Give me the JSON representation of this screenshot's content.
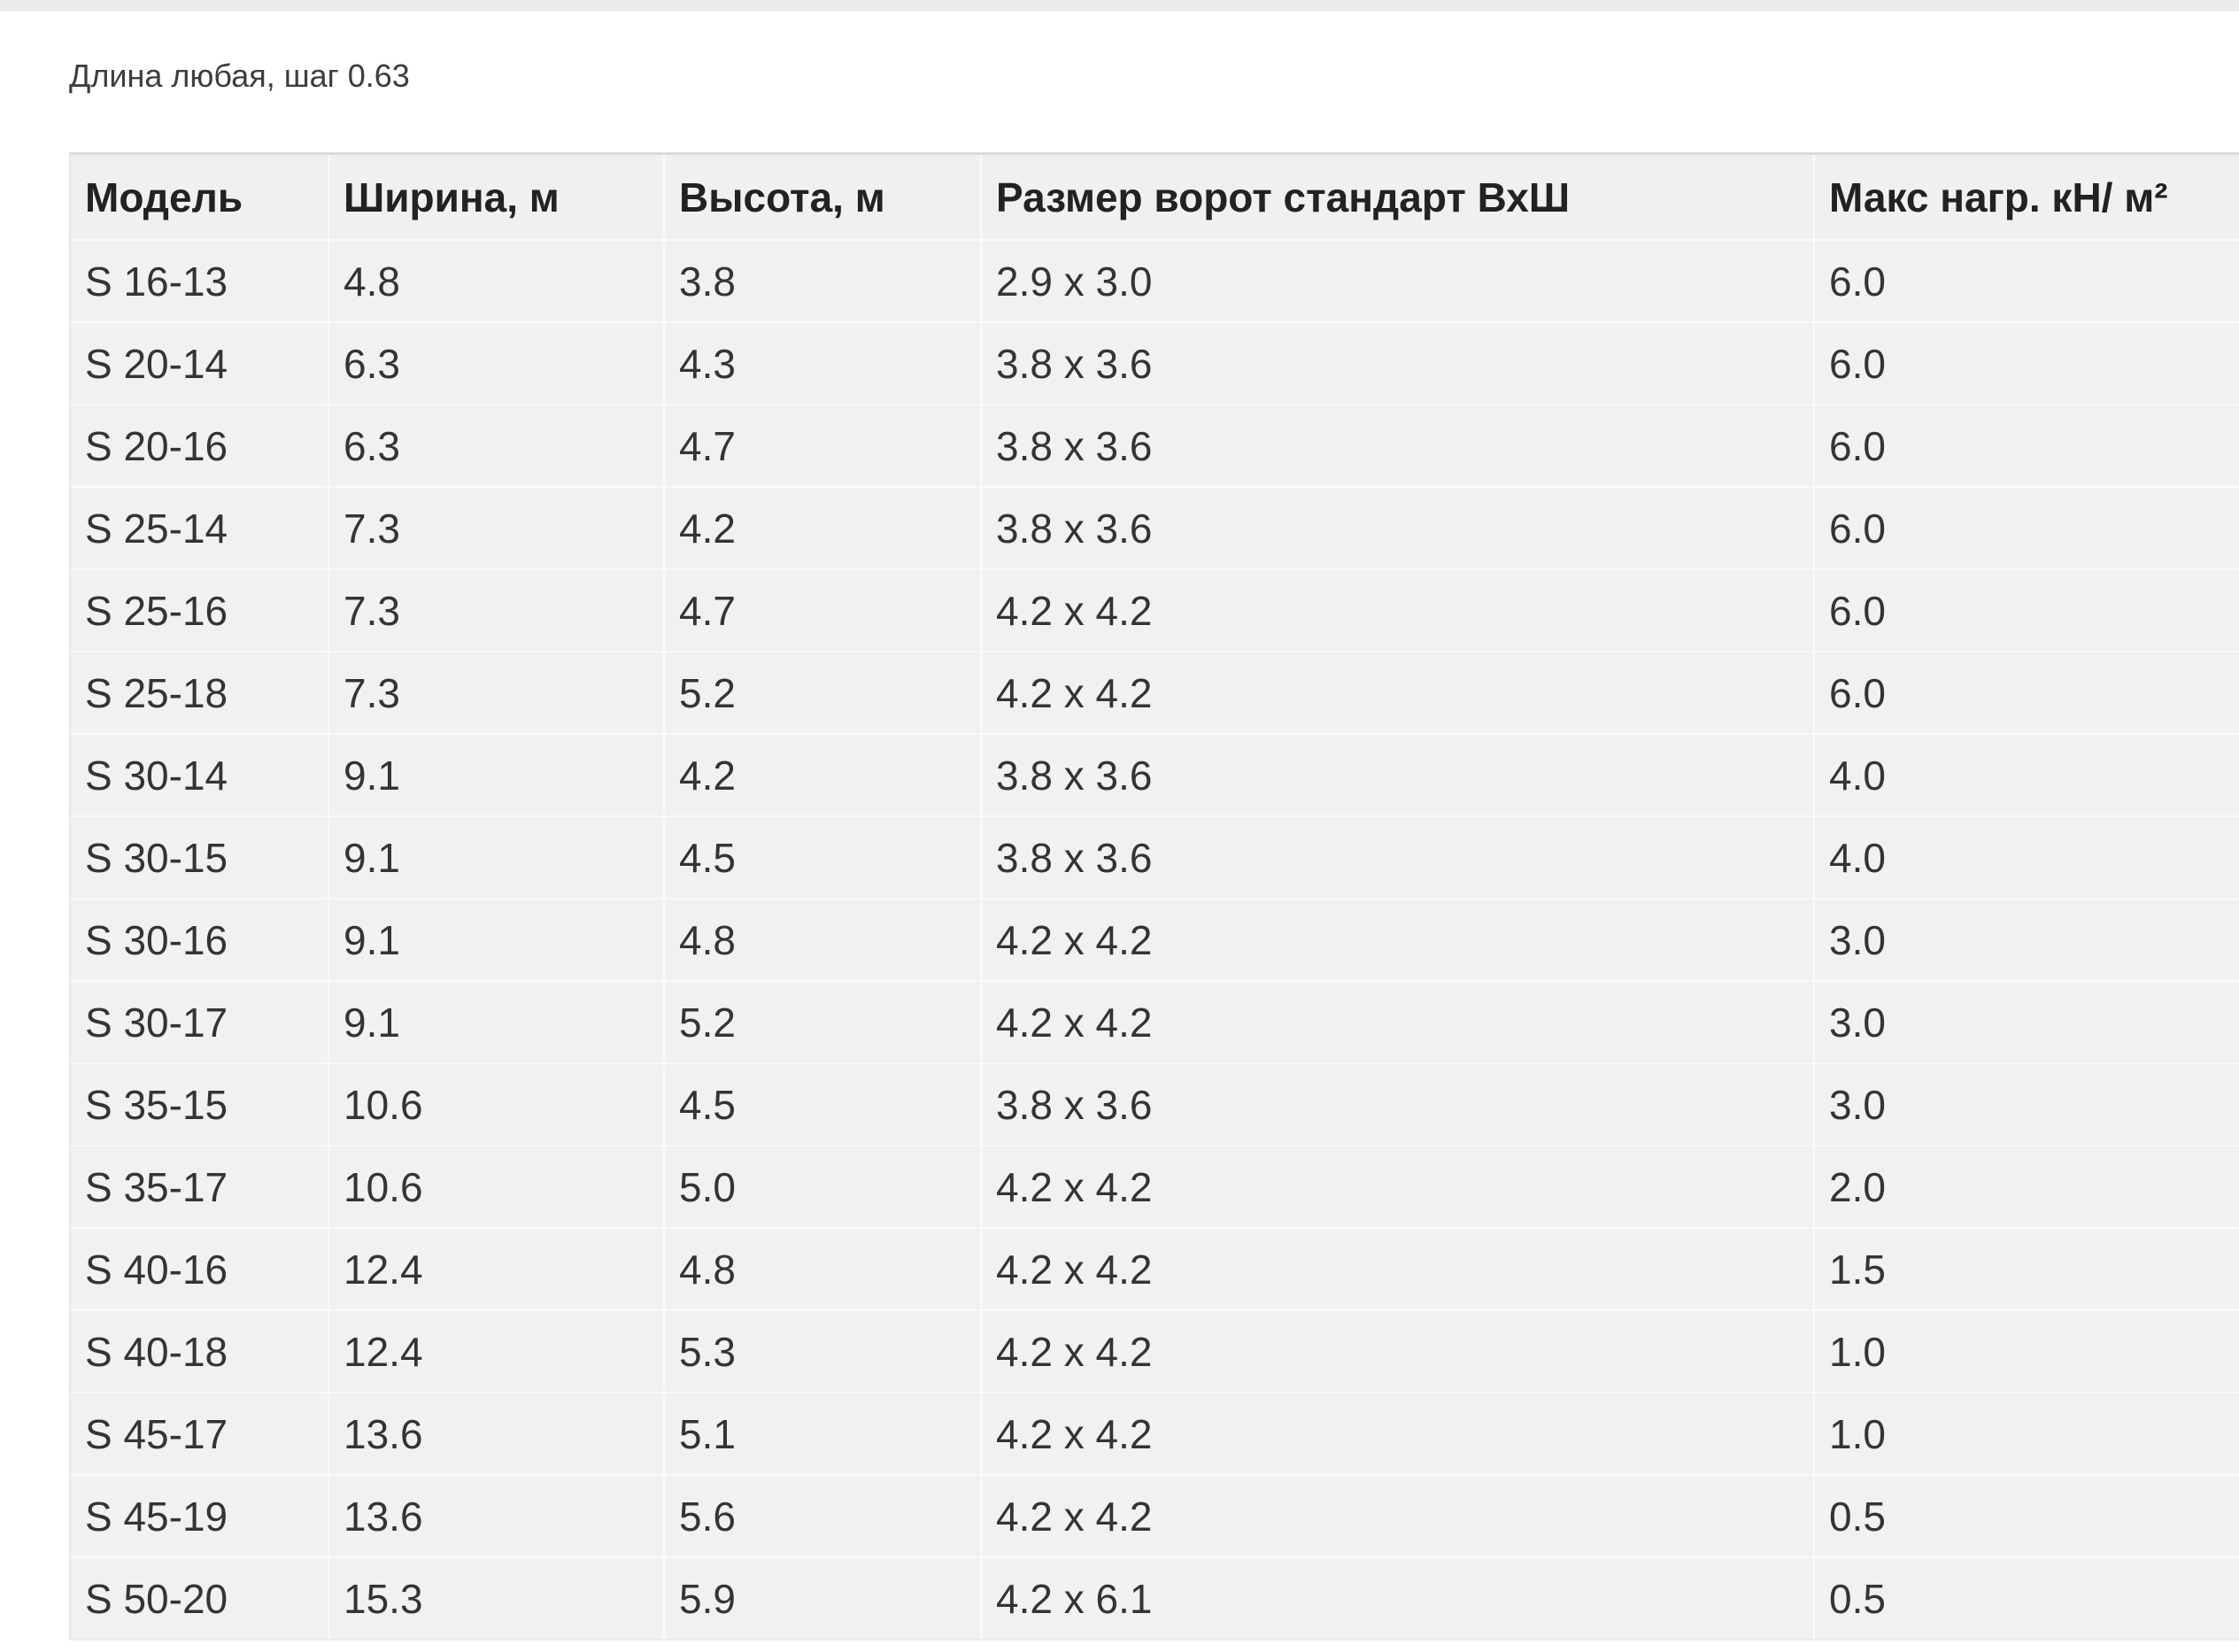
{
  "page": {
    "caption": "Длина любая, шаг 0.63"
  },
  "table": {
    "columns": [
      "Модель",
      "Ширина, м",
      "Высота, м",
      "Размер ворот стандарт ВхШ",
      "Макс нагр. кН/ м²"
    ],
    "rows": [
      [
        "S 16-13",
        "4.8",
        "3.8",
        "2.9 x 3.0",
        "6.0"
      ],
      [
        "S 20-14",
        "6.3",
        "4.3",
        "3.8 x 3.6",
        "6.0"
      ],
      [
        "S 20-16",
        "6.3",
        "4.7",
        "3.8 x 3.6",
        "6.0"
      ],
      [
        "S 25-14",
        "7.3",
        "4.2",
        "3.8 x 3.6",
        "6.0"
      ],
      [
        "S 25-16",
        "7.3",
        "4.7",
        "4.2 x 4.2",
        "6.0"
      ],
      [
        "S 25-18",
        "7.3",
        "5.2",
        "4.2 x 4.2",
        "6.0"
      ],
      [
        "S 30-14",
        "9.1",
        "4.2",
        "3.8 x 3.6",
        "4.0"
      ],
      [
        "S 30-15",
        "9.1",
        "4.5",
        "3.8 x 3.6",
        "4.0"
      ],
      [
        "S 30-16",
        "9.1",
        "4.8",
        "4.2 x 4.2",
        "3.0"
      ],
      [
        "S 30-17",
        "9.1",
        "5.2",
        "4.2 x 4.2",
        "3.0"
      ],
      [
        "S 35-15",
        "10.6",
        "4.5",
        "3.8 x 3.6",
        "3.0"
      ],
      [
        "S 35-17",
        "10.6",
        "5.0",
        "4.2 x 4.2",
        "2.0"
      ],
      [
        "S 40-16",
        "12.4",
        "4.8",
        "4.2 x 4.2",
        "1.5"
      ],
      [
        "S 40-18",
        "12.4",
        "5.3",
        "4.2 x 4.2",
        "1.0"
      ],
      [
        "S 45-17",
        "13.6",
        "5.1",
        "4.2 x 4.2",
        "1.0"
      ],
      [
        "S 45-19",
        "13.6",
        "5.6",
        "4.2 x 4.2",
        "0.5"
      ],
      [
        "S 50-20",
        "15.3",
        "5.9",
        "4.2 x 6.1",
        "0.5"
      ]
    ]
  },
  "colors": {
    "cell_bg": "#f1f1f1",
    "header_bg": "#f0f0f0",
    "cell_border": "#fafafa",
    "table_top_border": "#dadada",
    "text": "#343434"
  }
}
